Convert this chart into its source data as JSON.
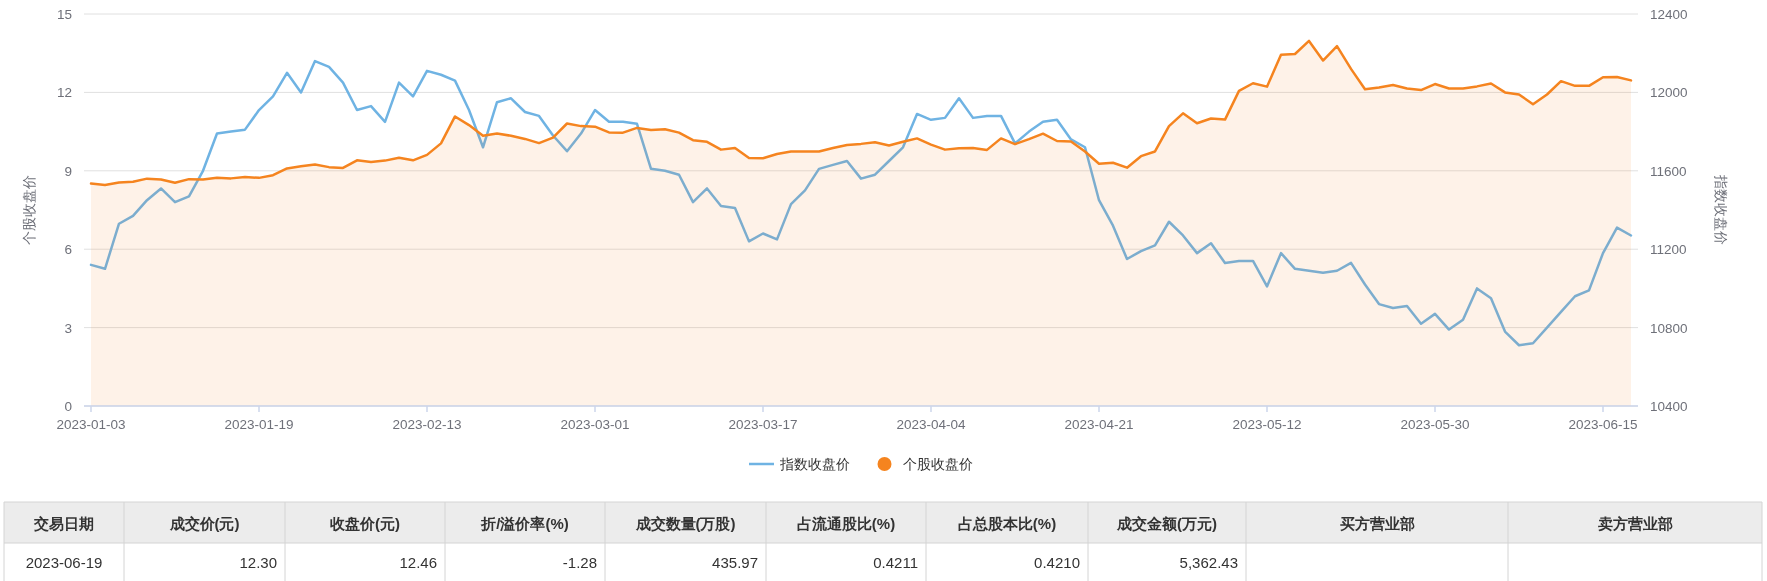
{
  "chart_data": {
    "type": "line",
    "ylabel": "个股收盘价",
    "y2label": "指数收盘价",
    "categories": [
      "2023-01-03",
      null,
      null,
      null,
      null,
      null,
      null,
      null,
      null,
      null,
      null,
      null,
      "2023-01-19",
      null,
      null,
      null,
      null,
      null,
      null,
      null,
      null,
      null,
      null,
      null,
      "2023-02-13",
      null,
      null,
      null,
      null,
      null,
      null,
      null,
      null,
      null,
      null,
      null,
      "2023-03-01",
      null,
      null,
      null,
      null,
      null,
      null,
      null,
      null,
      null,
      null,
      null,
      "2023-03-17",
      null,
      null,
      null,
      null,
      null,
      null,
      null,
      null,
      null,
      null,
      null,
      "2023-04-04",
      null,
      null,
      null,
      null,
      null,
      null,
      null,
      null,
      null,
      null,
      null,
      "2023-04-21",
      null,
      null,
      null,
      null,
      null,
      null,
      null,
      null,
      null,
      null,
      null,
      "2023-05-12",
      null,
      null,
      null,
      null,
      null,
      null,
      null,
      null,
      null,
      null,
      null,
      "2023-05-30",
      null,
      null,
      null,
      null,
      null,
      null,
      null,
      null,
      null,
      null,
      null,
      "2023-06-15",
      null,
      null
    ],
    "series": [
      {
        "name": "指数收盘价",
        "type": "line",
        "axis": "y2",
        "color": "#6fb3e3",
        "values": [
          11120,
          11100,
          11330,
          11370,
          11450,
          11510,
          11440,
          11470,
          11600,
          11790,
          11800,
          11810,
          11910,
          11980,
          12100,
          12000,
          12160,
          12130,
          12050,
          11910,
          11930,
          11850,
          12050,
          11980,
          12110,
          12090,
          12060,
          11910,
          11720,
          11950,
          11970,
          11900,
          11880,
          11780,
          11700,
          11790,
          11910,
          11850,
          11850,
          11840,
          11610,
          11600,
          11580,
          11440,
          11510,
          11420,
          11410,
          11240,
          11280,
          11250,
          11430,
          11500,
          11610,
          11630,
          11650,
          11560,
          11580,
          11650,
          11720,
          11890,
          11860,
          11870,
          11970,
          11870,
          11880,
          11880,
          11740,
          11800,
          11850,
          11860,
          11760,
          11720,
          11450,
          11320,
          11150,
          11190,
          11220,
          11340,
          11270,
          11180,
          11230,
          11130,
          11140,
          11140,
          11010,
          11180,
          11100,
          11090,
          11080,
          11090,
          11130,
          11020,
          10920,
          10900,
          10910,
          10820,
          10870,
          10790,
          10840,
          11000,
          10950,
          10780,
          10710,
          10720,
          10800,
          10880,
          10960,
          10990,
          11180,
          11310,
          11270
        ]
      },
      {
        "name": "个股收盘价",
        "type": "area",
        "color": "#f5841f",
        "values": [
          8.51,
          8.46,
          8.55,
          8.58,
          8.7,
          8.67,
          8.54,
          8.68,
          8.67,
          8.73,
          8.71,
          8.76,
          8.73,
          8.83,
          9.09,
          9.17,
          9.24,
          9.14,
          9.11,
          9.4,
          9.34,
          9.39,
          9.5,
          9.4,
          9.61,
          10.05,
          11.08,
          10.75,
          10.34,
          10.43,
          10.34,
          10.22,
          10.06,
          10.27,
          10.81,
          10.71,
          10.69,
          10.47,
          10.46,
          10.64,
          10.56,
          10.59,
          10.46,
          10.17,
          10.11,
          9.81,
          9.87,
          9.49,
          9.48,
          9.64,
          9.74,
          9.74,
          9.74,
          9.87,
          9.99,
          10.03,
          10.09,
          9.97,
          10.11,
          10.24,
          10.0,
          9.81,
          9.86,
          9.87,
          9.8,
          10.24,
          10.02,
          10.21,
          10.42,
          10.14,
          10.12,
          9.74,
          9.27,
          9.31,
          9.12,
          9.56,
          9.74,
          10.71,
          11.2,
          10.82,
          11.0,
          10.96,
          12.06,
          12.35,
          12.22,
          13.44,
          13.47,
          13.97,
          13.22,
          13.77,
          12.9,
          12.12,
          12.19,
          12.28,
          12.15,
          12.09,
          12.32,
          12.15,
          12.15,
          12.23,
          12.34,
          12.0,
          11.92,
          11.55,
          11.92,
          12.43,
          12.25,
          12.25,
          12.58,
          12.59,
          12.46
        ]
      }
    ],
    "ylim": [
      0,
      15
    ],
    "yticks": [
      0,
      3,
      6,
      9,
      12,
      15
    ],
    "y2lim": [
      10400,
      12400
    ],
    "y2ticks": [
      10400,
      10800,
      11200,
      11600,
      12000,
      12400
    ],
    "grid": "y",
    "legend": "bottom",
    "annotations": [
      "交易日期",
      "成交价(元)",
      "收盘价(元)",
      "折/溢价率(%)",
      "成交数量(万股)",
      "占流通股比(%)",
      "占总股本比(%)",
      "成交金额(万元)",
      "买方营业部",
      "卖方营业部",
      "2023-06-19",
      "12.30",
      "12.46",
      "-1.28",
      "435.97",
      "0.4211",
      "0.4210",
      "5,362.43"
    ]
  }
}
